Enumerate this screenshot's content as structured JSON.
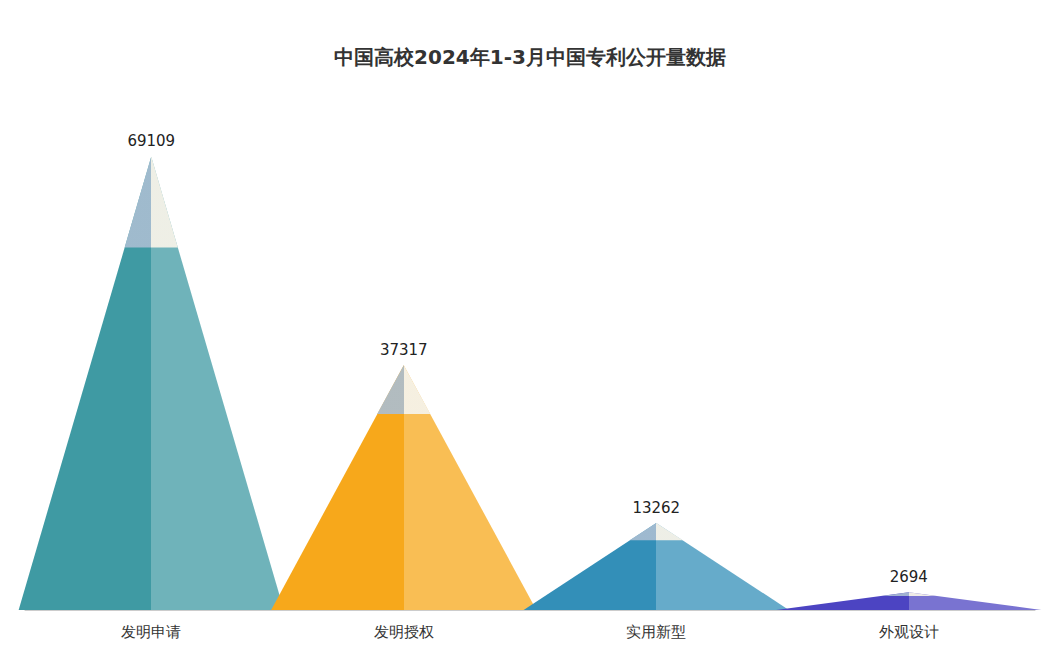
{
  "chart_data": {
    "type": "bar",
    "title": "中国高校2024年1-3月中国专利公开量数据",
    "categories": [
      "发明申请",
      "发明授权",
      "实用新型",
      "外观设计"
    ],
    "values": [
      69109,
      37317,
      13262,
      2694
    ],
    "colors": [
      "#3f9aa3",
      "#f7a81b",
      "#338fb8",
      "#4c44c2"
    ],
    "ylim": [
      0,
      75000
    ],
    "data_labels": true,
    "tick_labels": "x"
  }
}
